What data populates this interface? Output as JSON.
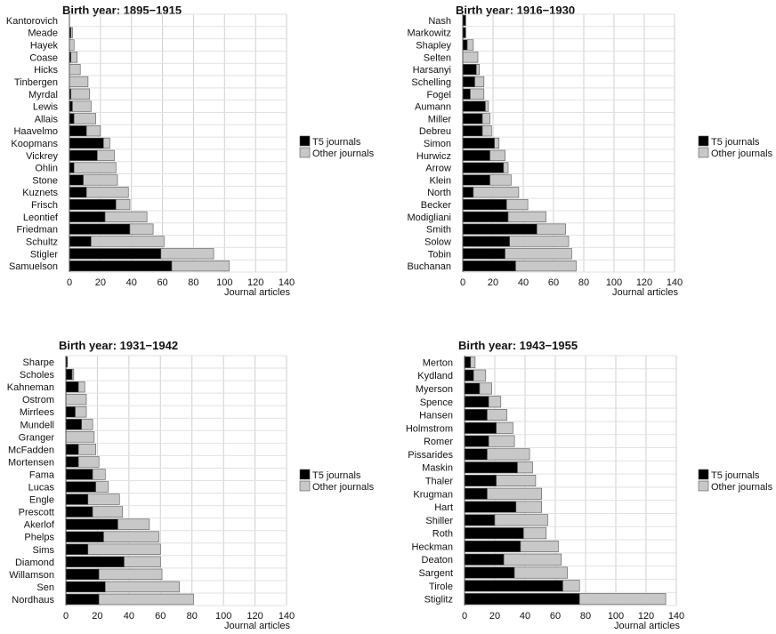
{
  "legend": {
    "t5_label": "T5 journals",
    "other_label": "Other journals"
  },
  "colors": {
    "t5": "#000000",
    "other": "#c8c8c8",
    "bar_edge": "#555555",
    "grid": "#cfcfcf"
  },
  "chart_data": [
    {
      "type": "bar",
      "orientation": "horizontal",
      "stacked": true,
      "title": "Birth year: 1895−1915",
      "xlabel": "Journal articles",
      "xlim": [
        0,
        140
      ],
      "xticks": [
        "0",
        "20",
        "40",
        "60",
        "80",
        "100",
        "120",
        "140"
      ],
      "grid": "vertical",
      "legend": "right",
      "categories": [
        "Kantorovich",
        "Meade",
        "Hayek",
        "Coase",
        "Hicks",
        "Tinbergen",
        "Myrdal",
        "Lewis",
        "Allais",
        "Haavelmo",
        "Koopmans",
        "Vickrey",
        "Ohlin",
        "Stone",
        "Kuznets",
        "Frisch",
        "Leontief",
        "Friedman",
        "Schultz",
        "Stigler",
        "Samuelson"
      ],
      "series": [
        {
          "name": "T5 journals",
          "values": [
            0,
            1,
            0,
            1,
            0,
            0,
            1,
            2,
            3,
            11,
            22,
            18,
            3,
            9,
            11,
            30,
            23,
            39,
            14,
            59,
            66
          ]
        },
        {
          "name": "Other journals",
          "values": [
            0,
            1,
            3,
            4,
            7,
            12,
            12,
            12,
            14,
            9,
            4,
            11,
            27,
            22,
            27,
            9,
            27,
            15,
            47,
            34,
            37
          ]
        }
      ]
    },
    {
      "type": "bar",
      "orientation": "horizontal",
      "stacked": true,
      "title": "Birth year: 1916−1930",
      "xlabel": "Journal articles",
      "xlim": [
        0,
        140
      ],
      "xticks": [
        "0",
        "20",
        "40",
        "60",
        "80",
        "100",
        "120",
        "140"
      ],
      "grid": "vertical",
      "legend": "right",
      "categories": [
        "Nash",
        "Markowitz",
        "Shapley",
        "Selten",
        "Harsanyi",
        "Schelling",
        "Fogel",
        "Aumann",
        "Miller",
        "Debreu",
        "Simon",
        "Hurwicz",
        "Arrow",
        "Klein",
        "North",
        "Becker",
        "Modigliani",
        "Smith",
        "Solow",
        "Tobin",
        "Buchanan"
      ],
      "series": [
        {
          "name": "T5 journals",
          "values": [
            2,
            2,
            3,
            0,
            9,
            8,
            5,
            15,
            13,
            13,
            21,
            18,
            27,
            18,
            7,
            29,
            30,
            49,
            31,
            28,
            35
          ]
        },
        {
          "name": "Other journals",
          "values": [
            0,
            0,
            4,
            10,
            2,
            6,
            9,
            2,
            5,
            6,
            3,
            10,
            3,
            14,
            30,
            14,
            25,
            19,
            39,
            44,
            40
          ]
        }
      ]
    },
    {
      "type": "bar",
      "orientation": "horizontal",
      "stacked": true,
      "title": "Birth year: 1931−1942",
      "xlabel": "Journal articles",
      "xlim": [
        0,
        140
      ],
      "xticks": [
        "0",
        "20",
        "40",
        "60",
        "80",
        "100",
        "120",
        "140"
      ],
      "grid": "vertical",
      "legend": "right",
      "categories": [
        "Sharpe",
        "Scholes",
        "Kahneman",
        "Ostrom",
        "Mirrlees",
        "Mundell",
        "Granger",
        "McFadden",
        "Mortensen",
        "Fama",
        "Lucas",
        "Engle",
        "Prescott",
        "Akerlof",
        "Phelps",
        "Sims",
        "Diamond",
        "Willamson",
        "Sen",
        "Nordhaus"
      ],
      "series": [
        {
          "name": "T5 journals",
          "values": [
            1,
            4,
            8,
            0,
            6,
            10,
            0,
            8,
            8,
            17,
            19,
            14,
            17,
            33,
            24,
            14,
            37,
            21,
            25,
            21
          ]
        },
        {
          "name": "Other journals",
          "values": [
            0,
            1,
            4,
            13,
            7,
            7,
            18,
            11,
            13,
            8,
            8,
            20,
            19,
            20,
            35,
            46,
            23,
            40,
            47,
            60
          ]
        }
      ]
    },
    {
      "type": "bar",
      "orientation": "horizontal",
      "stacked": true,
      "title": "Birth year: 1943−1955",
      "xlabel": "Journal articles",
      "xlim": [
        0,
        140
      ],
      "xticks": [
        "0",
        "20",
        "40",
        "60",
        "80",
        "100",
        "120",
        "140"
      ],
      "grid": "vertical",
      "legend": "right",
      "categories": [
        "Merton",
        "Kydland",
        "Myerson",
        "Spence",
        "Hansen",
        "Holmstrom",
        "Romer",
        "Pissarides",
        "Maskin",
        "Thaler",
        "Krugman",
        "Hart",
        "Shiller",
        "Roth",
        "Heckman",
        "Deaton",
        "Sargent",
        "Tirole",
        "Stiglitz"
      ],
      "series": [
        {
          "name": "T5 journals",
          "values": [
            4,
            6,
            10,
            16,
            15,
            21,
            16,
            15,
            35,
            21,
            15,
            34,
            20,
            39,
            37,
            26,
            33,
            65,
            76
          ]
        },
        {
          "name": "Other journals",
          "values": [
            3,
            8,
            8,
            8,
            13,
            11,
            17,
            28,
            10,
            26,
            36,
            17,
            35,
            15,
            25,
            38,
            35,
            11,
            57
          ]
        }
      ]
    }
  ]
}
